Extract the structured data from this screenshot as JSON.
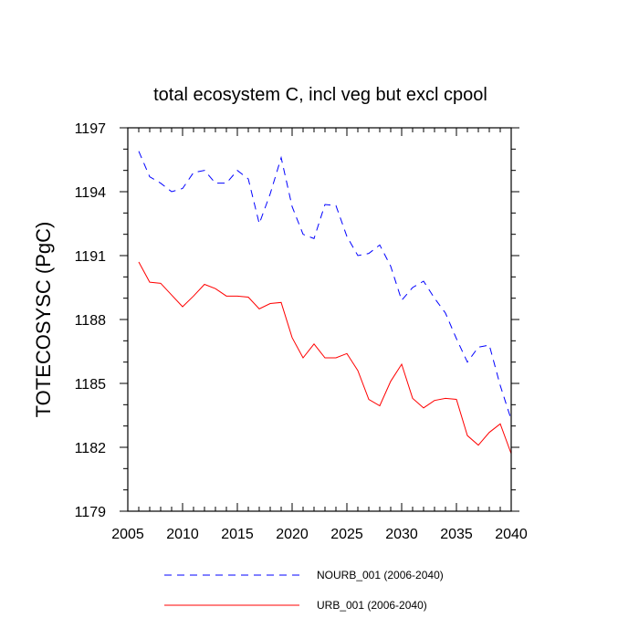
{
  "chart_data": {
    "type": "line",
    "title": "total ecosystem C, incl veg but excl cpool",
    "xlabel": "",
    "ylabel": "TOTECOSYSC  (PgC)",
    "xlim": [
      2005,
      2040
    ],
    "ylim": [
      1179,
      1197
    ],
    "xticks": [
      2005,
      2010,
      2015,
      2020,
      2025,
      2030,
      2035,
      2040
    ],
    "yticks": [
      1179,
      1182,
      1185,
      1188,
      1191,
      1194,
      1197
    ],
    "x": [
      2006,
      2007,
      2008,
      2009,
      2010,
      2011,
      2012,
      2013,
      2014,
      2015,
      2016,
      2017,
      2018,
      2019,
      2020,
      2021,
      2022,
      2023,
      2024,
      2025,
      2026,
      2027,
      2028,
      2029,
      2030,
      2031,
      2032,
      2033,
      2034,
      2035,
      2036,
      2037,
      2038,
      2039,
      2040
    ],
    "series": [
      {
        "name": "NOURB_001 (2006-2040)",
        "color": "#0000ff",
        "dash": "dashed",
        "values": [
          1195.9,
          1194.7,
          1194.4,
          1194.0,
          1194.15,
          1194.9,
          1195.0,
          1194.4,
          1194.4,
          1195.0,
          1194.6,
          1192.5,
          1193.9,
          1195.6,
          1193.3,
          1192.0,
          1191.8,
          1193.4,
          1193.35,
          1191.9,
          1191.0,
          1191.1,
          1191.5,
          1190.5,
          1188.9,
          1189.5,
          1189.8,
          1189.0,
          1188.3,
          1187.1,
          1186.0,
          1186.7,
          1186.8,
          1184.9,
          1183.3
        ]
      },
      {
        "name": "URB_001 (2006-2040)",
        "color": "#ff0000",
        "dash": "solid",
        "values": [
          1190.7,
          1189.75,
          1189.7,
          1189.15,
          1188.6,
          1189.1,
          1189.65,
          1189.45,
          1189.1,
          1189.1,
          1189.05,
          1188.5,
          1188.75,
          1188.8,
          1187.15,
          1186.2,
          1186.85,
          1186.2,
          1186.2,
          1186.4,
          1185.6,
          1184.25,
          1183.95,
          1185.1,
          1185.9,
          1184.3,
          1183.85,
          1184.2,
          1184.3,
          1184.25,
          1182.55,
          1182.1,
          1182.7,
          1183.1,
          1181.7
        ]
      }
    ],
    "legend_position": "bottom"
  }
}
